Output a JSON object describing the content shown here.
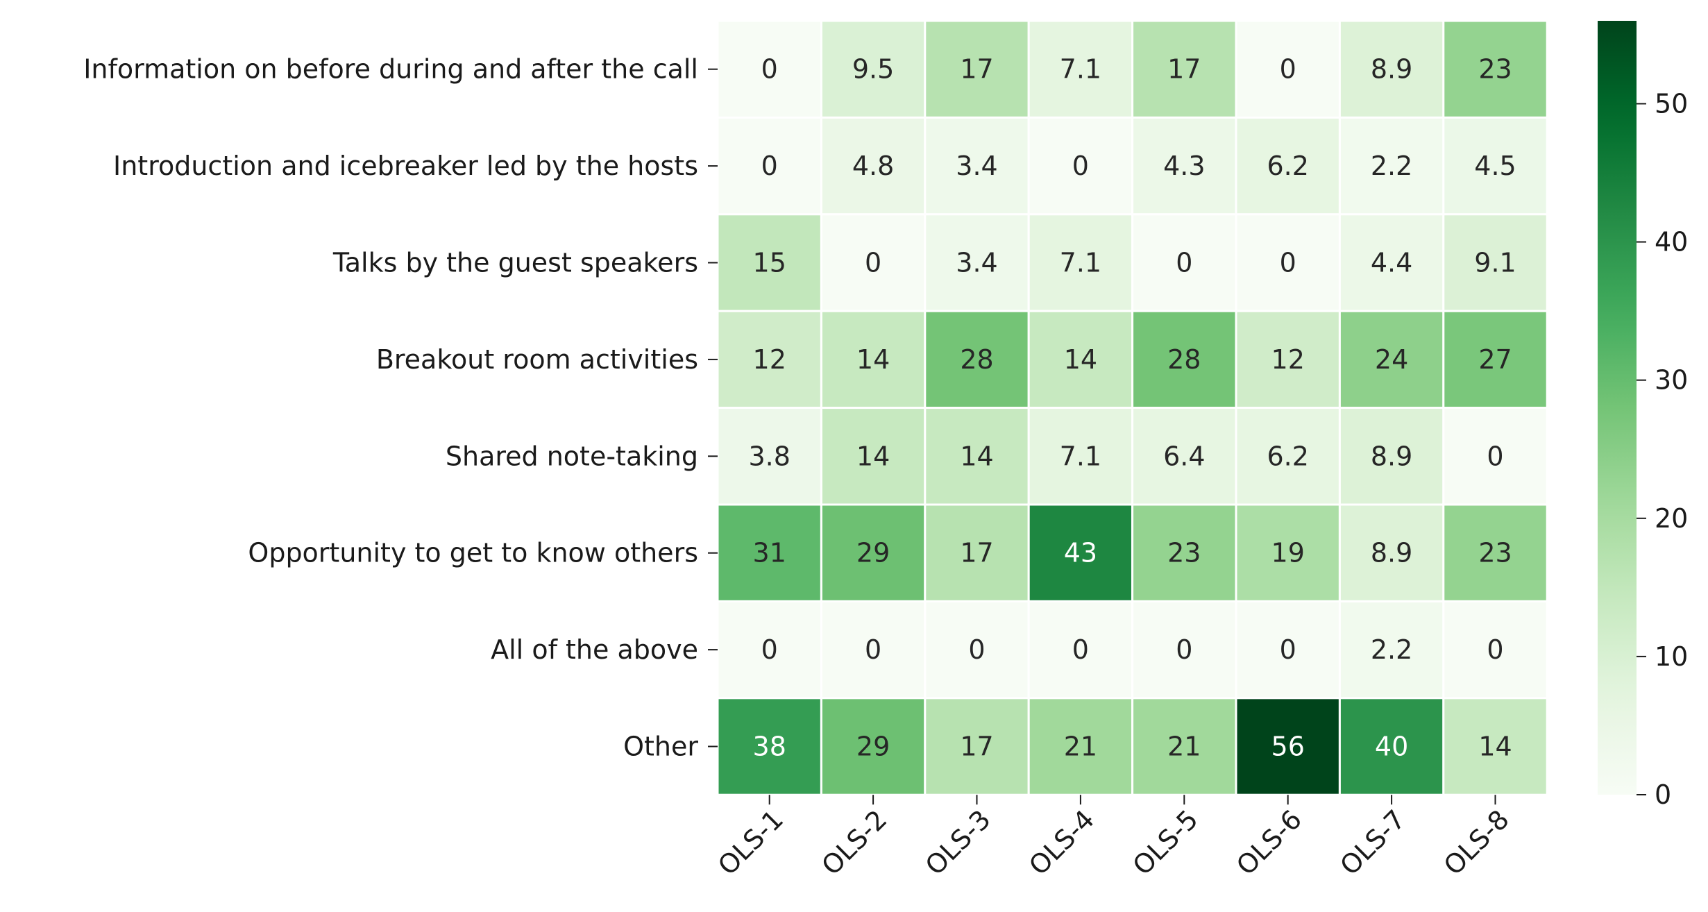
{
  "chart_data": {
    "type": "heatmap",
    "title": "",
    "xlabel": "",
    "ylabel": "",
    "columns": [
      "OLS-1",
      "OLS-2",
      "OLS-3",
      "OLS-4",
      "OLS-5",
      "OLS-6",
      "OLS-7",
      "OLS-8"
    ],
    "rows": [
      "Information on before during and after the call",
      "Introduction and icebreaker led by the hosts",
      "Talks by the guest speakers",
      "Breakout room activities",
      "Shared note-taking",
      "Opportunity to get to know others",
      "All of the above",
      "Other"
    ],
    "values": [
      [
        0,
        9.5,
        17,
        7.1,
        17,
        0,
        8.9,
        23
      ],
      [
        0,
        4.8,
        3.4,
        0,
        4.3,
        6.2,
        2.2,
        4.5
      ],
      [
        15,
        0,
        3.4,
        7.1,
        0,
        0,
        4.4,
        9.1
      ],
      [
        12,
        14,
        28,
        14,
        28,
        12,
        24,
        27
      ],
      [
        3.8,
        14,
        14,
        7.1,
        6.4,
        6.2,
        8.9,
        0
      ],
      [
        31,
        29,
        17,
        43,
        23,
        19,
        8.9,
        23
      ],
      [
        0,
        0,
        0,
        0,
        0,
        0,
        2.2,
        0
      ],
      [
        38,
        29,
        17,
        21,
        21,
        56,
        40,
        14
      ]
    ],
    "colorbar": {
      "ticks": [
        0,
        10,
        20,
        30,
        40,
        50
      ],
      "vmin": 0,
      "vmax": 56,
      "colormap": "Greens"
    },
    "cell_border_color": "#ffffff"
  }
}
